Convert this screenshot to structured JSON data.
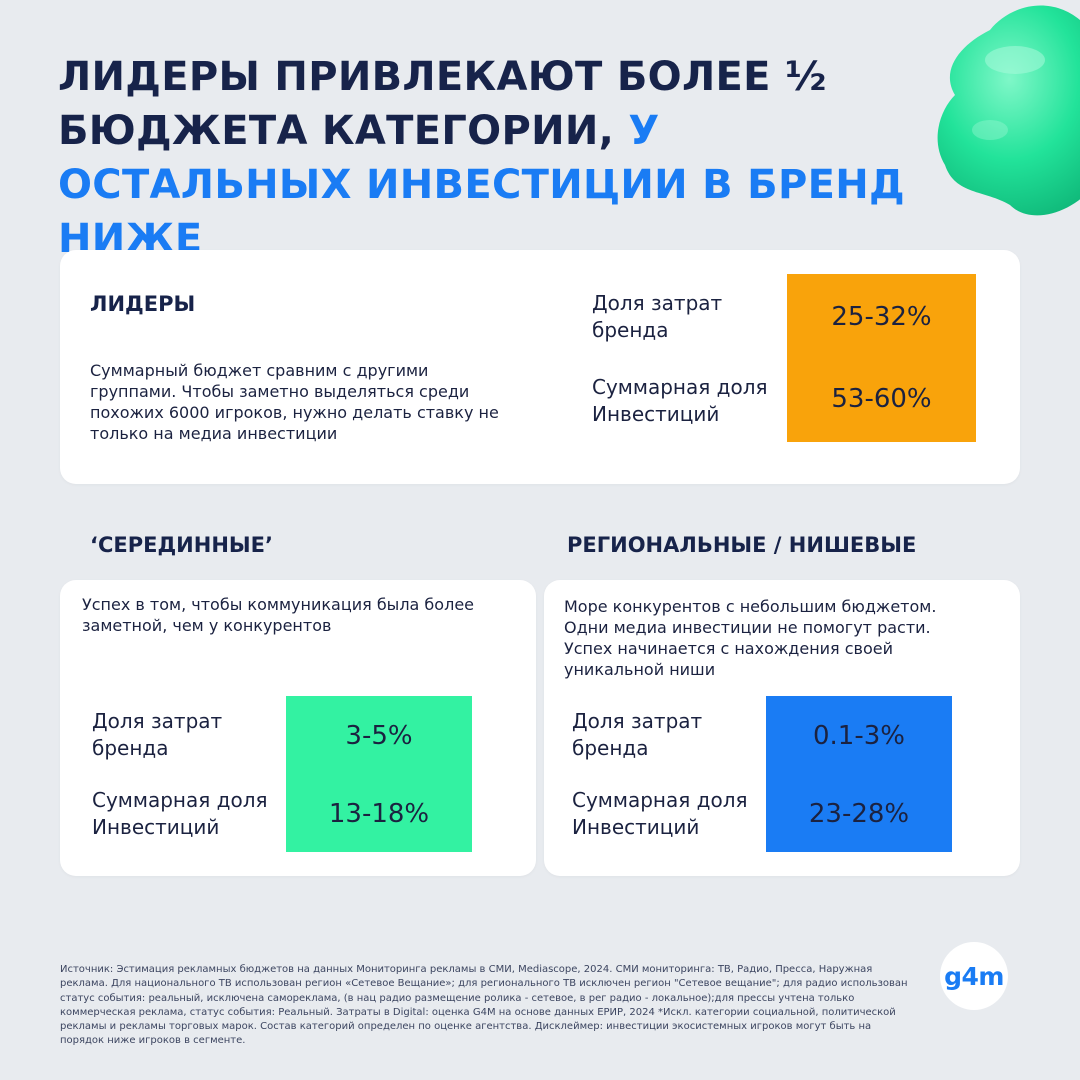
{
  "headline": {
    "part1": "ЛИДЕРЫ ПРИВЛЕКАЮТ БОЛЕЕ ½ БЮДЖЕТА КАТЕГОРИИ, ",
    "part2": "У ОСТАЛЬНЫХ ИНВЕСТИЦИИ В БРЕНД НИЖЕ"
  },
  "leaders": {
    "title": "ЛИДЕРЫ",
    "description": "Суммарный бюджет сравним с другими группами. Чтобы заметно выделяться среди похожих 6000 игроков, нужно делать ставку не только на медиа инвестиции",
    "metrics": [
      {
        "label": "Доля затрат бренда",
        "value": "25-32%"
      },
      {
        "label": "Суммарная доля Инвестиций",
        "value": "53-60%"
      }
    ],
    "color": "#f9a30b"
  },
  "middle": {
    "title": "‘СЕРЕДИННЫЕ’",
    "description": "Успех в том, чтобы коммуникация была более заметной, чем у конкурентов",
    "metrics": [
      {
        "label": "Доля затрат бренда",
        "value": "3-5%"
      },
      {
        "label": "Суммарная доля Инвестиций",
        "value": "13-18%"
      }
    ],
    "color": "#33f2a2"
  },
  "regional": {
    "title": "РЕГИОНАЛЬНЫЕ / НИШЕВЫЕ",
    "description": "Море конкурентов с небольшим бюджетом. Одни медиа инвестиции не помогут расти. Успех начинается с нахождения своей уникальной ниши",
    "metrics": [
      {
        "label": "Доля затрат бренда",
        "value": "0.1-3%"
      },
      {
        "label": "Суммарная доля Инвестиций",
        "value": "23-28%"
      }
    ],
    "color": "#1a7cf4"
  },
  "footnote": "Источник: Эстимация рекламных бюджетов на данных Мониторинга рекламы в СМИ, Mediascope, 2024. СМИ мониторинга: ТВ, Радио, Пресса, Наружная реклама. Для национального ТВ использован регион «Сетевое Вещание»; для регионального ТВ исключен регион \"Сетевое вещание\"; для радио использован статус события: реальный, исключена самореклама, (в нац радио размещение ролика - сетевое, в рег радио - локальное);для прессы учтена только коммерческая реклама, статус события: Реальный. Затраты в Digital: оценка G4M на основе данных ЕРИР, 2024 *Искл. категории социальной, политической рекламы и рекламы торговых марок. Состав категорий определен по оценке агентства. Дисклеймер: инвестиции экосистемных игроков могут быть на порядок ниже игроков в сегменте.",
  "logo": {
    "text": "g4m",
    "icon": "g4m-logo-icon"
  },
  "decor": {
    "icon": "green-3d-blob-icon",
    "color": "#22e39a"
  }
}
